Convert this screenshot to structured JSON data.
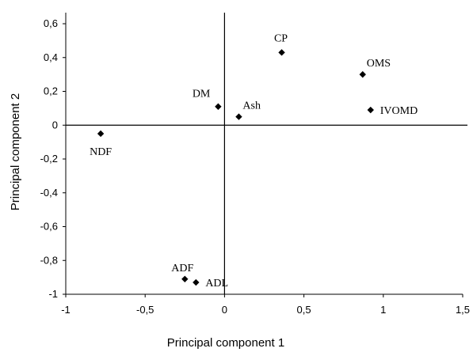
{
  "chart_data": {
    "type": "scatter",
    "title": "",
    "xlabel": "Principal component 1",
    "ylabel": "Principal component 2",
    "xlim": [
      -1,
      1.5
    ],
    "ylim": [
      -1,
      0.6
    ],
    "xticks": [
      -1,
      -0.5,
      0,
      0.5,
      1,
      1.5
    ],
    "xtick_labels": [
      "-1",
      "-0,5",
      "0",
      "0,5",
      "1",
      "1,5"
    ],
    "yticks": [
      0.6,
      0.4,
      0.2,
      0,
      -0.2,
      -0.4,
      -0.6,
      -0.8,
      -1
    ],
    "ytick_labels": [
      "0,6",
      "0,4",
      "0,2",
      "0",
      "-0,2",
      "-0,4",
      "-0,6",
      "-0,8",
      "-1"
    ],
    "grid": false,
    "legend": "none",
    "marker": "diamond",
    "marker_color": "#000000",
    "points": [
      {
        "label": "CP",
        "x": 0.36,
        "y": 0.43,
        "label_pos": "above"
      },
      {
        "label": "OMS",
        "x": 0.87,
        "y": 0.3,
        "label_pos": "above-right"
      },
      {
        "label": "DM",
        "x": -0.04,
        "y": 0.11,
        "label_pos": "left"
      },
      {
        "label": "Ash",
        "x": 0.09,
        "y": 0.05,
        "label_pos": "above-right"
      },
      {
        "label": "IVOMD",
        "x": 0.92,
        "y": 0.09,
        "label_pos": "right"
      },
      {
        "label": "NDF",
        "x": -0.78,
        "y": -0.05,
        "label_pos": "below"
      },
      {
        "label": "ADF",
        "x": -0.25,
        "y": -0.91,
        "label_pos": "above-left"
      },
      {
        "label": "ADL",
        "x": -0.18,
        "y": -0.93,
        "label_pos": "right"
      }
    ]
  }
}
